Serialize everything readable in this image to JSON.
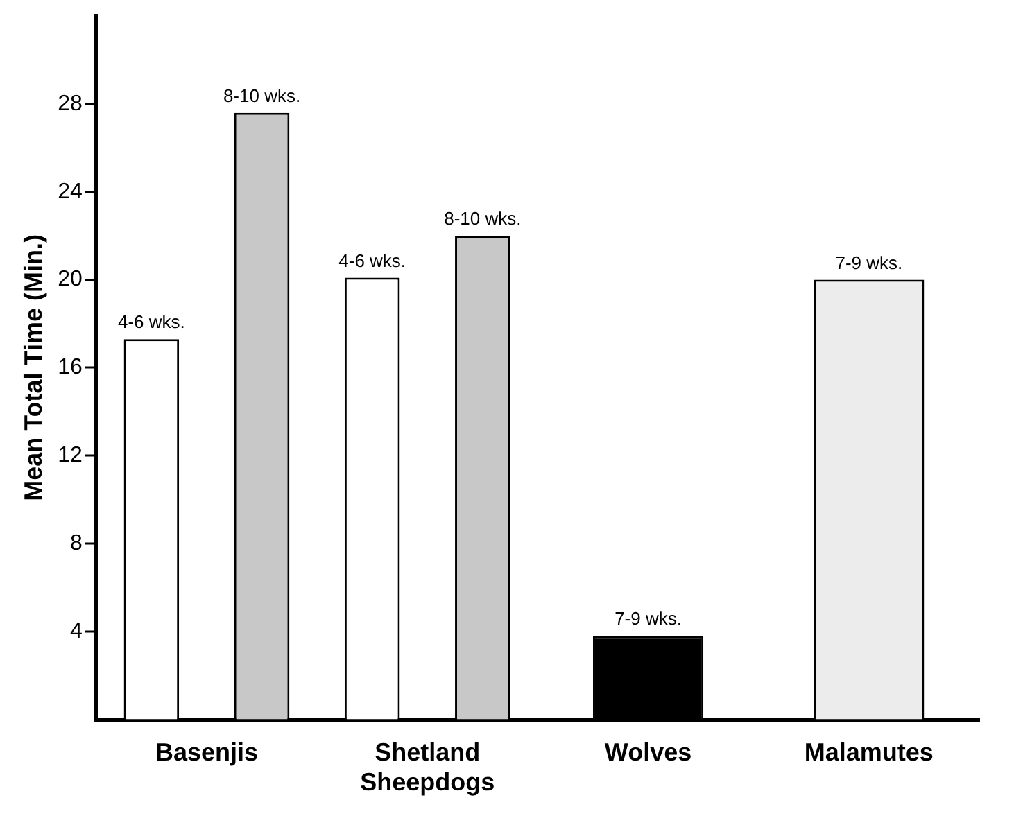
{
  "chart_data": {
    "type": "bar",
    "ylabel": "Mean Total Time (Min.)",
    "categories": [
      "Basenjis",
      "Shetland Sheepdogs",
      "Wolves",
      "Malamutes"
    ],
    "series": [
      {
        "colors": [
          "#ffffff",
          "#ffffff",
          "#000000",
          "#ffffff"
        ],
        "values": [
          17.3,
          20.1,
          3.8,
          null
        ],
        "value_labels": [
          "4-6 wks.",
          "4-6 wks.",
          "7-9 wks.",
          null
        ]
      },
      {
        "colors": [
          "#c8c8c8",
          "#c8c8c8",
          "#ffffff",
          "#ececec"
        ],
        "values": [
          27.6,
          22.0,
          null,
          20.0
        ],
        "value_labels": [
          "8-10 wks.",
          "8-10 wks.",
          null,
          "7-9 wks."
        ]
      }
    ],
    "ylim": [
      0,
      32
    ],
    "yticks": [
      4,
      8,
      12,
      16,
      20,
      24,
      28
    ],
    "grid": false,
    "legend": false
  }
}
